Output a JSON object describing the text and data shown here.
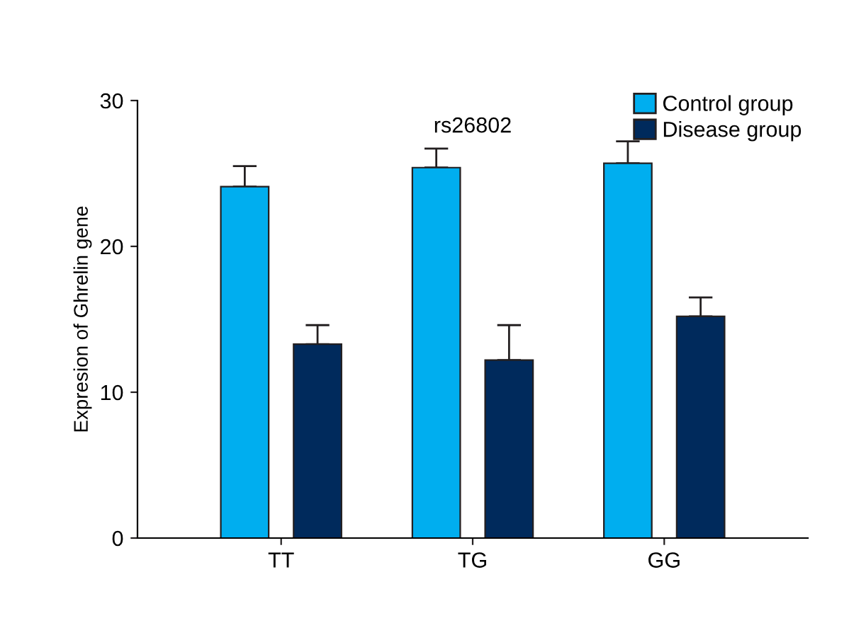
{
  "chart_data": {
    "type": "bar",
    "title": "rs26802",
    "ylabel": "Expresion of Ghrelin gene",
    "categories": [
      "TT",
      "TG",
      "GG"
    ],
    "series": [
      {
        "name": "Control group",
        "color": "#00aeef",
        "values": [
          24.1,
          25.4,
          25.7
        ],
        "errors": [
          [
            24.1,
            25.5
          ],
          [
            25.4,
            26.7
          ],
          [
            25.7,
            27.2
          ]
        ]
      },
      {
        "name": "Disease group",
        "color": "#002a5c",
        "values": [
          13.3,
          12.2,
          15.2
        ],
        "errors": [
          [
            13.3,
            14.6
          ],
          [
            12.2,
            14.6
          ],
          [
            15.2,
            16.5
          ]
        ]
      }
    ],
    "ylim": [
      0,
      30
    ],
    "yticks": [
      0,
      10,
      20,
      30
    ],
    "grid": false,
    "legend": "top right"
  }
}
